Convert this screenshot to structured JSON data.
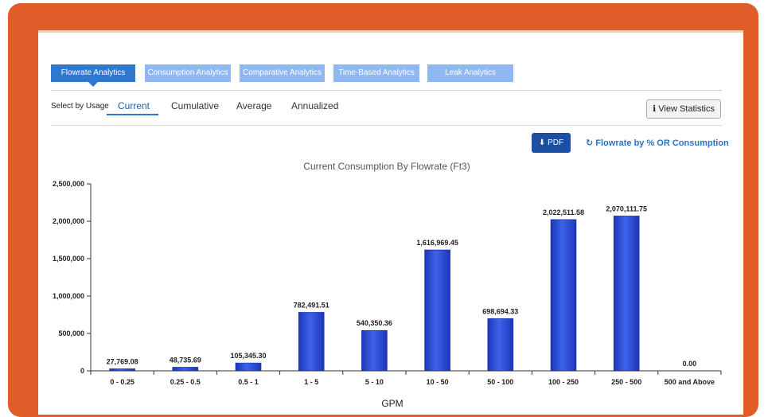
{
  "tabs": [
    {
      "label": "Flowrate Analytics",
      "active": true
    },
    {
      "label": "Consumption Analytics",
      "active": false
    },
    {
      "label": "Comparative Analytics",
      "active": false
    },
    {
      "label": "Time-Based Analytics",
      "active": false
    },
    {
      "label": "Leak Analytics",
      "active": false
    }
  ],
  "usage": {
    "label": "Select by Usage",
    "options": [
      "Current",
      "Cumulative",
      "Average",
      "Annualized"
    ],
    "selected": "Current"
  },
  "buttons": {
    "view_statistics": "View Statistics",
    "pdf": "PDF",
    "toggle_mode": "Flowrate by % OR Consumption"
  },
  "icons": {
    "view_statistics": "info-icon",
    "pdf": "download-icon",
    "toggle_mode": "refresh-icon"
  },
  "colors": {
    "frame": "#e05d2a",
    "tab_active": "#2f78d0",
    "tab_inactive": "#8fb8f3",
    "bar": "#2b4fd9",
    "pdf_button": "#1c4ea2"
  },
  "chart_data": {
    "type": "bar",
    "title": "Current Consumption By Flowrate (Ft3)",
    "xlabel": "GPM",
    "ylabel": "",
    "categories": [
      "0 - 0.25",
      "0.25 - 0.5",
      "0.5 - 1",
      "1 - 5",
      "5 - 10",
      "10 - 50",
      "50 - 100",
      "100 - 250",
      "250 - 500",
      "500 and Above"
    ],
    "values": [
      27769.08,
      48735.69,
      105345.3,
      782491.51,
      540350.36,
      1616969.45,
      698694.33,
      2022511.58,
      2070111.75,
      0.0
    ],
    "data_labels": [
      "27,769.08",
      "48,735.69",
      "105,345.30",
      "782,491.51",
      "540,350.36",
      "1,616,969.45",
      "698,694.33",
      "2,022,511.58",
      "2,070,111.75",
      "0.00"
    ],
    "yticks": [
      0,
      500000,
      1000000,
      1500000,
      2000000,
      2500000
    ],
    "ytick_labels": [
      "0",
      "500,000",
      "1,000,000",
      "1,500,000",
      "2,000,000",
      "2,500,000"
    ],
    "ylim": [
      0,
      2500000
    ],
    "grid": false,
    "legend": "none"
  }
}
